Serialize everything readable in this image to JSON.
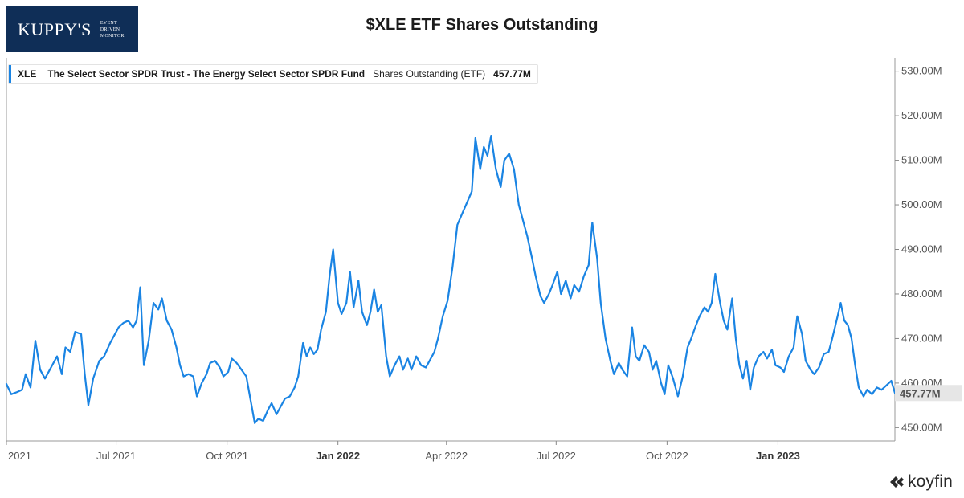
{
  "logo": {
    "name": "KUPPY'S",
    "tagline_lines": [
      "EVENT",
      "DRIVEN",
      "MONITOR"
    ]
  },
  "title": "$XLE ETF Shares Outstanding",
  "legend": {
    "ticker": "XLE",
    "fund": "The Select Sector SPDR Trust - The Energy Select Sector SPDR Fund",
    "metric": "Shares Outstanding (ETF)",
    "value": "457.77M"
  },
  "brand": "koyfin",
  "colors": {
    "line": "#1a84e3",
    "logo_bg": "#0f2e57",
    "last_value_label_bg": "#e6e6e6"
  },
  "chart_data": {
    "type": "line",
    "title": "$XLE ETF Shares Outstanding",
    "xlabel": "",
    "ylabel": "",
    "x_ticks": [
      {
        "label": "2021",
        "date": "2021-04-01",
        "bold": false
      },
      {
        "label": "Jul 2021",
        "date": "2021-07-01",
        "bold": false
      },
      {
        "label": "Oct 2021",
        "date": "2021-10-01",
        "bold": false
      },
      {
        "label": "Jan 2022",
        "date": "2022-01-01",
        "bold": true
      },
      {
        "label": "Apr 2022",
        "date": "2022-04-01",
        "bold": false
      },
      {
        "label": "Jul 2022",
        "date": "2022-07-01",
        "bold": false
      },
      {
        "label": "Oct 2022",
        "date": "2022-10-01",
        "bold": false
      },
      {
        "label": "Jan 2023",
        "date": "2023-01-01",
        "bold": true
      }
    ],
    "y_ticks": [
      450,
      460,
      470,
      480,
      490,
      500,
      510,
      520,
      530
    ],
    "y_tick_labels": [
      "450.00M",
      "460.00M",
      "470.00M",
      "480.00M",
      "490.00M",
      "500.00M",
      "510.00M",
      "520.00M",
      "530.00M"
    ],
    "ylim": [
      447,
      533
    ],
    "xlim": [
      "2021-04-01",
      "2023-04-08"
    ],
    "last_value_label": "457.77M",
    "grid": false,
    "legend_position": "top-left",
    "series": [
      {
        "name": "XLE Shares Outstanding (ETF)",
        "unit": "M",
        "points": [
          [
            "2021-04-01",
            459.8
          ],
          [
            "2021-04-05",
            457.5
          ],
          [
            "2021-04-10",
            458.0
          ],
          [
            "2021-04-14",
            458.5
          ],
          [
            "2021-04-17",
            462.0
          ],
          [
            "2021-04-21",
            459.0
          ],
          [
            "2021-04-25",
            469.5
          ],
          [
            "2021-04-29",
            463.0
          ],
          [
            "2021-05-03",
            461.0
          ],
          [
            "2021-05-08",
            463.5
          ],
          [
            "2021-05-13",
            466.0
          ],
          [
            "2021-05-17",
            462.0
          ],
          [
            "2021-05-20",
            468.0
          ],
          [
            "2021-05-24",
            467.0
          ],
          [
            "2021-05-28",
            471.5
          ],
          [
            "2021-06-02",
            471.0
          ],
          [
            "2021-06-05",
            462.0
          ],
          [
            "2021-06-08",
            455.0
          ],
          [
            "2021-06-12",
            461.0
          ],
          [
            "2021-06-17",
            465.0
          ],
          [
            "2021-06-21",
            466.0
          ],
          [
            "2021-06-26",
            469.0
          ],
          [
            "2021-06-30",
            471.0
          ],
          [
            "2021-07-03",
            472.5
          ],
          [
            "2021-07-07",
            473.5
          ],
          [
            "2021-07-11",
            474.0
          ],
          [
            "2021-07-15",
            472.5
          ],
          [
            "2021-07-18",
            474.0
          ],
          [
            "2021-07-21",
            481.5
          ],
          [
            "2021-07-24",
            464.0
          ],
          [
            "2021-07-28",
            469.5
          ],
          [
            "2021-08-01",
            478.0
          ],
          [
            "2021-08-05",
            476.5
          ],
          [
            "2021-08-08",
            479.0
          ],
          [
            "2021-08-12",
            474.0
          ],
          [
            "2021-08-16",
            472.0
          ],
          [
            "2021-08-20",
            468.0
          ],
          [
            "2021-08-23",
            464.0
          ],
          [
            "2021-08-26",
            461.5
          ],
          [
            "2021-08-30",
            462.0
          ],
          [
            "2021-09-03",
            461.5
          ],
          [
            "2021-09-06",
            457.0
          ],
          [
            "2021-09-10",
            460.0
          ],
          [
            "2021-09-14",
            462.0
          ],
          [
            "2021-09-17",
            464.5
          ],
          [
            "2021-09-21",
            465.0
          ],
          [
            "2021-09-25",
            463.5
          ],
          [
            "2021-09-28",
            461.5
          ],
          [
            "2021-10-02",
            462.5
          ],
          [
            "2021-10-05",
            465.5
          ],
          [
            "2021-10-09",
            464.5
          ],
          [
            "2021-10-13",
            463.0
          ],
          [
            "2021-10-17",
            461.5
          ],
          [
            "2021-10-20",
            457.0
          ],
          [
            "2021-10-24",
            451.0
          ],
          [
            "2021-10-27",
            452.0
          ],
          [
            "2021-10-31",
            451.5
          ],
          [
            "2021-11-04",
            454.0
          ],
          [
            "2021-11-07",
            455.5
          ],
          [
            "2021-11-11",
            453.0
          ],
          [
            "2021-11-15",
            455.0
          ],
          [
            "2021-11-18",
            456.5
          ],
          [
            "2021-11-22",
            457.0
          ],
          [
            "2021-11-26",
            459.0
          ],
          [
            "2021-11-29",
            461.5
          ],
          [
            "2021-12-03",
            469.0
          ],
          [
            "2021-12-06",
            466.0
          ],
          [
            "2021-12-09",
            468.0
          ],
          [
            "2021-12-12",
            466.5
          ],
          [
            "2021-12-15",
            467.5
          ],
          [
            "2021-12-18",
            472.0
          ],
          [
            "2021-12-22",
            476.0
          ],
          [
            "2021-12-25",
            484.0
          ],
          [
            "2021-12-28",
            490.0
          ],
          [
            "2022-01-01",
            478.0
          ],
          [
            "2022-01-04",
            475.5
          ],
          [
            "2022-01-08",
            478.0
          ],
          [
            "2022-01-11",
            485.0
          ],
          [
            "2022-01-14",
            477.0
          ],
          [
            "2022-01-18",
            483.0
          ],
          [
            "2022-01-21",
            476.0
          ],
          [
            "2022-01-25",
            473.0
          ],
          [
            "2022-01-28",
            476.0
          ],
          [
            "2022-01-31",
            481.0
          ],
          [
            "2022-02-03",
            476.0
          ],
          [
            "2022-02-06",
            477.5
          ],
          [
            "2022-02-10",
            466.0
          ],
          [
            "2022-02-13",
            461.5
          ],
          [
            "2022-02-17",
            464.0
          ],
          [
            "2022-02-21",
            466.0
          ],
          [
            "2022-02-24",
            463.0
          ],
          [
            "2022-02-28",
            465.5
          ],
          [
            "2022-03-03",
            463.0
          ],
          [
            "2022-03-07",
            466.0
          ],
          [
            "2022-03-11",
            464.0
          ],
          [
            "2022-03-15",
            463.5
          ],
          [
            "2022-03-18",
            465.0
          ],
          [
            "2022-03-22",
            467.0
          ],
          [
            "2022-03-25",
            470.0
          ],
          [
            "2022-03-29",
            475.0
          ],
          [
            "2022-04-02",
            478.5
          ],
          [
            "2022-04-06",
            486.0
          ],
          [
            "2022-04-10",
            495.5
          ],
          [
            "2022-04-14",
            498.0
          ],
          [
            "2022-04-18",
            500.5
          ],
          [
            "2022-04-22",
            503.0
          ],
          [
            "2022-04-25",
            515.0
          ],
          [
            "2022-04-29",
            508.0
          ],
          [
            "2022-05-02",
            513.0
          ],
          [
            "2022-05-05",
            511.0
          ],
          [
            "2022-05-08",
            515.5
          ],
          [
            "2022-05-12",
            508.0
          ],
          [
            "2022-05-16",
            504.0
          ],
          [
            "2022-05-19",
            510.0
          ],
          [
            "2022-05-23",
            511.5
          ],
          [
            "2022-05-27",
            508.0
          ],
          [
            "2022-05-31",
            500.0
          ],
          [
            "2022-06-03",
            497.0
          ],
          [
            "2022-06-07",
            493.0
          ],
          [
            "2022-06-11",
            488.0
          ],
          [
            "2022-06-14",
            484.0
          ],
          [
            "2022-06-18",
            479.5
          ],
          [
            "2022-06-21",
            478.0
          ],
          [
            "2022-06-25",
            480.0
          ],
          [
            "2022-06-28",
            482.0
          ],
          [
            "2022-07-02",
            485.0
          ],
          [
            "2022-07-05",
            480.0
          ],
          [
            "2022-07-09",
            483.0
          ],
          [
            "2022-07-13",
            479.0
          ],
          [
            "2022-07-16",
            482.0
          ],
          [
            "2022-07-20",
            480.5
          ],
          [
            "2022-07-24",
            484.0
          ],
          [
            "2022-07-28",
            486.5
          ],
          [
            "2022-07-31",
            496.0
          ],
          [
            "2022-08-04",
            488.0
          ],
          [
            "2022-08-07",
            478.0
          ],
          [
            "2022-08-11",
            470.0
          ],
          [
            "2022-08-15",
            465.0
          ],
          [
            "2022-08-18",
            462.0
          ],
          [
            "2022-08-22",
            464.5
          ],
          [
            "2022-08-25",
            463.0
          ],
          [
            "2022-08-29",
            461.5
          ],
          [
            "2022-09-02",
            472.5
          ],
          [
            "2022-09-05",
            466.0
          ],
          [
            "2022-09-08",
            465.0
          ],
          [
            "2022-09-12",
            468.5
          ],
          [
            "2022-09-16",
            467.0
          ],
          [
            "2022-09-19",
            463.0
          ],
          [
            "2022-09-22",
            465.0
          ],
          [
            "2022-09-26",
            460.0
          ],
          [
            "2022-09-29",
            457.5
          ],
          [
            "2022-10-02",
            464.0
          ],
          [
            "2022-10-06",
            461.0
          ],
          [
            "2022-10-10",
            457.0
          ],
          [
            "2022-10-14",
            461.5
          ],
          [
            "2022-10-18",
            468.0
          ],
          [
            "2022-10-21",
            470.0
          ],
          [
            "2022-10-25",
            473.0
          ],
          [
            "2022-10-28",
            475.0
          ],
          [
            "2022-11-01",
            477.0
          ],
          [
            "2022-11-04",
            476.0
          ],
          [
            "2022-11-07",
            478.0
          ],
          [
            "2022-11-10",
            484.5
          ],
          [
            "2022-11-14",
            478.0
          ],
          [
            "2022-11-17",
            474.0
          ],
          [
            "2022-11-20",
            472.0
          ],
          [
            "2022-11-24",
            479.0
          ],
          [
            "2022-11-27",
            470.0
          ],
          [
            "2022-11-30",
            464.0
          ],
          [
            "2022-12-03",
            461.0
          ],
          [
            "2022-12-06",
            465.0
          ],
          [
            "2022-12-09",
            458.5
          ],
          [
            "2022-12-12",
            463.5
          ],
          [
            "2022-12-16",
            466.0
          ],
          [
            "2022-12-20",
            467.0
          ],
          [
            "2022-12-23",
            465.5
          ],
          [
            "2022-12-27",
            467.5
          ],
          [
            "2022-12-30",
            464.0
          ],
          [
            "2023-01-03",
            463.5
          ],
          [
            "2023-01-06",
            462.5
          ],
          [
            "2023-01-10",
            466.0
          ],
          [
            "2023-01-14",
            468.0
          ],
          [
            "2023-01-17",
            475.0
          ],
          [
            "2023-01-21",
            471.0
          ],
          [
            "2023-01-24",
            465.0
          ],
          [
            "2023-01-28",
            463.0
          ],
          [
            "2023-01-31",
            462.0
          ],
          [
            "2023-02-04",
            463.5
          ],
          [
            "2023-02-08",
            466.5
          ],
          [
            "2023-02-12",
            467.0
          ],
          [
            "2023-02-15",
            470.0
          ],
          [
            "2023-02-19",
            474.5
          ],
          [
            "2023-02-22",
            478.0
          ],
          [
            "2023-02-25",
            474.0
          ],
          [
            "2023-02-28",
            473.0
          ],
          [
            "2023-03-03",
            470.0
          ],
          [
            "2023-03-06",
            464.0
          ],
          [
            "2023-03-09",
            459.0
          ],
          [
            "2023-03-13",
            457.0
          ],
          [
            "2023-03-16",
            458.5
          ],
          [
            "2023-03-20",
            457.5
          ],
          [
            "2023-03-24",
            459.0
          ],
          [
            "2023-03-28",
            458.5
          ],
          [
            "2023-04-01",
            459.5
          ],
          [
            "2023-04-05",
            460.5
          ],
          [
            "2023-04-08",
            457.77
          ]
        ]
      }
    ]
  }
}
